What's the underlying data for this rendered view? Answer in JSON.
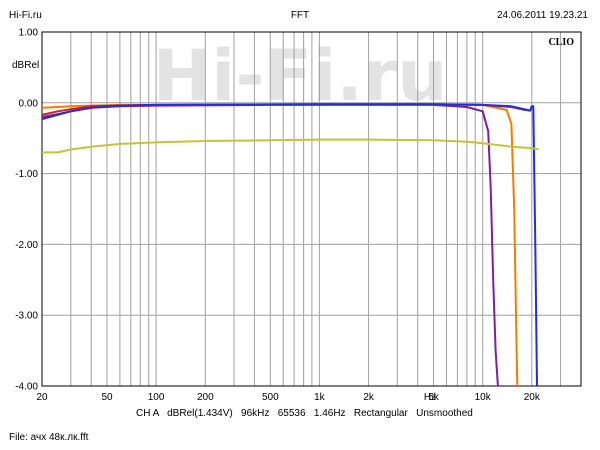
{
  "header": {
    "left": "Hi-Fi.ru",
    "center": "FFT",
    "right": "24.06.2011 19.23.21"
  },
  "brand": "CLIO",
  "watermark": "Hi-Fi.ru",
  "status_line": "CH A   dBRel(1.434V)   96kHz   65536   1.46Hz   Rectangular   Unsmoothed",
  "file_line": "File: ачх 48к.лк.fft",
  "colors": {
    "grid": "#a0a0a0",
    "purple": "#7b1fa2",
    "orange": "#f57c00",
    "red": "#d21c1c",
    "blue": "#1f2ee0",
    "olive": "#c4c43a"
  },
  "chart_data": {
    "type": "line",
    "title": "FFT",
    "xlabel": "Hz",
    "ylabel": "dBRel",
    "x_scale": "log",
    "xlim": [
      20,
      40000
    ],
    "ylim": [
      -4.0,
      1.0
    ],
    "x_ticks": [
      {
        "value": 20,
        "label": "20"
      },
      {
        "value": 50,
        "label": "50"
      },
      {
        "value": 100,
        "label": "100"
      },
      {
        "value": 200,
        "label": "200"
      },
      {
        "value": 500,
        "label": "500"
      },
      {
        "value": 1000,
        "label": "1k"
      },
      {
        "value": 2000,
        "label": "2k"
      },
      {
        "value": 5000,
        "label": "5k"
      },
      {
        "value": 10000,
        "label": "10k"
      },
      {
        "value": 20000,
        "label": "20k"
      }
    ],
    "y_ticks": [
      {
        "value": 1.0,
        "label": "1.00"
      },
      {
        "value": 0.0,
        "label": "0.00"
      },
      {
        "value": -1.0,
        "label": "-1.00"
      },
      {
        "value": -2.0,
        "label": "-2.00"
      },
      {
        "value": -3.0,
        "label": "-3.00"
      },
      {
        "value": -4.0,
        "label": "-4.00"
      }
    ],
    "grid": true,
    "series": [
      {
        "color": "#7b1fa2",
        "x": [
          20,
          25,
          30,
          40,
          60,
          100,
          500,
          1000,
          5000,
          8000,
          10000,
          10800,
          11200,
          11600,
          12000,
          12400
        ],
        "y": [
          -0.2,
          -0.16,
          -0.12,
          -0.07,
          -0.05,
          -0.04,
          -0.03,
          -0.03,
          -0.03,
          -0.06,
          -0.12,
          -0.4,
          -1.2,
          -2.5,
          -3.5,
          -4.0
        ]
      },
      {
        "color": "#f57c00",
        "x": [
          20,
          25,
          30,
          40,
          60,
          100,
          1000,
          5000,
          10000,
          14000,
          15000,
          15600,
          16000,
          16300
        ],
        "y": [
          -0.07,
          -0.06,
          -0.05,
          -0.04,
          -0.03,
          -0.03,
          -0.02,
          -0.02,
          -0.03,
          -0.1,
          -0.3,
          -1.5,
          -3.0,
          -4.0
        ]
      },
      {
        "color": "#d21c1c",
        "x": [
          20,
          25,
          30,
          40,
          60,
          100,
          1000,
          5000,
          10000,
          15000,
          18000,
          19500,
          20000
        ],
        "y": [
          -0.17,
          -0.12,
          -0.09,
          -0.05,
          -0.04,
          -0.03,
          -0.02,
          -0.02,
          -0.03,
          -0.06,
          -0.1,
          -0.11,
          -0.05
        ]
      },
      {
        "color": "#1f2ee0",
        "x": [
          20,
          25,
          30,
          40,
          60,
          100,
          1000,
          5000,
          10000,
          15000,
          18000,
          19500,
          20000,
          20400,
          21000,
          21500
        ],
        "y": [
          -0.23,
          -0.17,
          -0.12,
          -0.07,
          -0.04,
          -0.03,
          -0.02,
          -0.02,
          -0.03,
          -0.05,
          -0.09,
          -0.11,
          -0.05,
          -0.05,
          -2.0,
          -4.0
        ]
      },
      {
        "color": "#c4c43a",
        "x": [
          20,
          25,
          30,
          40,
          60,
          100,
          200,
          500,
          1000,
          2000,
          5000,
          8000,
          10000,
          15000,
          20000,
          22000
        ],
        "y": [
          -0.7,
          -0.7,
          -0.66,
          -0.62,
          -0.58,
          -0.56,
          -0.54,
          -0.53,
          -0.52,
          -0.52,
          -0.53,
          -0.55,
          -0.57,
          -0.62,
          -0.64,
          -0.66
        ]
      }
    ]
  }
}
